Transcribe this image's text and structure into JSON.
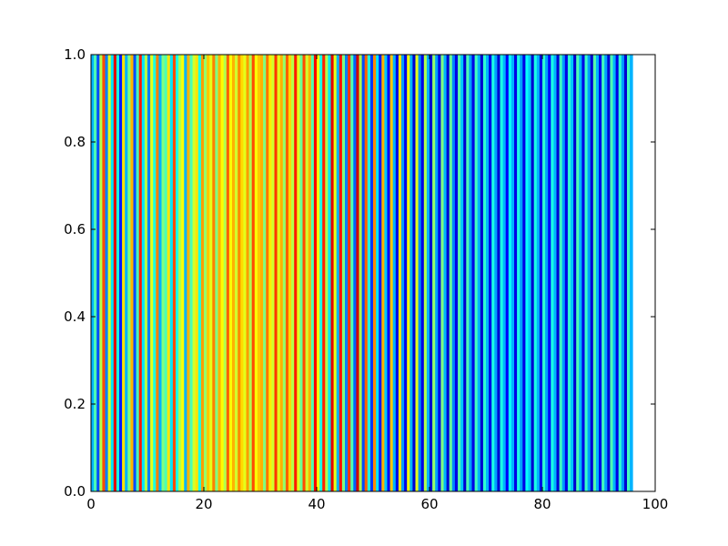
{
  "chart_data": {
    "type": "heatmap",
    "title": "",
    "xlabel": "",
    "ylabel": "",
    "xlim": [
      0,
      100
    ],
    "ylim": [
      0.0,
      1.0
    ],
    "grid": false,
    "colormap": "jet",
    "x_ticks": [
      {
        "value": 0,
        "label": "0"
      },
      {
        "value": 20,
        "label": "20"
      },
      {
        "value": 40,
        "label": "40"
      },
      {
        "value": 60,
        "label": "60"
      },
      {
        "value": 80,
        "label": "80"
      },
      {
        "value": 100,
        "label": "100"
      }
    ],
    "y_ticks": [
      {
        "value": 0.0,
        "label": "0.0"
      },
      {
        "value": 0.2,
        "label": "0.2"
      },
      {
        "value": 0.4,
        "label": "0.4"
      },
      {
        "value": 0.6,
        "label": "0.6"
      },
      {
        "value": 0.8,
        "label": "0.8"
      },
      {
        "value": 1.0,
        "label": "1.0"
      }
    ],
    "columns": {
      "x_start": 0,
      "x_step": 0.5,
      "description_of_values": "value of each vertical stripe mapped through jet colormap (0=dark blue, 1=dark red)",
      "values": [
        0.3,
        0.45,
        0.2,
        0.55,
        0.8,
        0.25,
        0.6,
        0.35,
        0.9,
        0.4,
        0.15,
        0.65,
        0.3,
        0.5,
        0.7,
        0.2,
        0.45,
        0.85,
        0.35,
        0.55,
        0.25,
        0.6,
        0.4,
        0.75,
        0.3,
        0.5,
        0.45,
        0.65,
        0.35,
        0.8,
        0.4,
        0.55,
        0.62,
        0.3,
        0.7,
        0.45,
        0.58,
        0.65,
        0.4,
        0.72,
        0.52,
        0.68,
        0.6,
        0.75,
        0.5,
        0.7,
        0.63,
        0.55,
        0.78,
        0.62,
        0.7,
        0.58,
        0.74,
        0.66,
        0.6,
        0.72,
        0.55,
        0.8,
        0.62,
        0.68,
        0.7,
        0.5,
        0.76,
        0.64,
        0.58,
        0.82,
        0.6,
        0.7,
        0.52,
        0.78,
        0.66,
        0.55,
        0.85,
        0.6,
        0.48,
        0.8,
        0.58,
        0.7,
        0.45,
        0.88,
        0.62,
        0.4,
        0.84,
        0.55,
        0.35,
        0.9,
        0.6,
        0.3,
        0.86,
        0.5,
        0.25,
        0.82,
        0.45,
        0.22,
        0.92,
        0.55,
        0.2,
        0.78,
        0.4,
        0.18,
        0.74,
        0.35,
        0.15,
        0.7,
        0.32,
        0.12,
        0.68,
        0.3,
        0.1,
        0.65,
        0.28,
        0.1,
        0.62,
        0.3,
        0.08,
        0.6,
        0.26,
        0.1,
        0.55,
        0.3,
        0.08,
        0.52,
        0.28,
        0.1,
        0.5,
        0.3,
        0.08,
        0.48,
        0.26,
        0.1,
        0.46,
        0.32,
        0.08,
        0.45,
        0.28,
        0.1,
        0.44,
        0.3,
        0.08,
        0.42,
        0.3,
        0.1,
        0.4,
        0.28,
        0.08,
        0.4,
        0.3,
        0.12,
        0.38,
        0.3,
        0.1,
        0.4,
        0.28,
        0.1,
        0.38,
        0.32,
        0.08,
        0.4,
        0.3,
        0.1,
        0.42,
        0.28,
        0.12,
        0.4,
        0.3,
        0.08,
        0.44,
        0.28,
        0.1,
        0.42,
        0.32,
        0.08,
        0.45,
        0.3,
        0.1,
        0.43,
        0.28,
        0.08,
        0.46,
        0.3,
        0.1,
        0.44,
        0.28,
        0.08,
        0.45,
        0.3,
        0.1,
        0.42,
        0.28,
        0.08,
        0.44,
        0.3
      ]
    }
  }
}
